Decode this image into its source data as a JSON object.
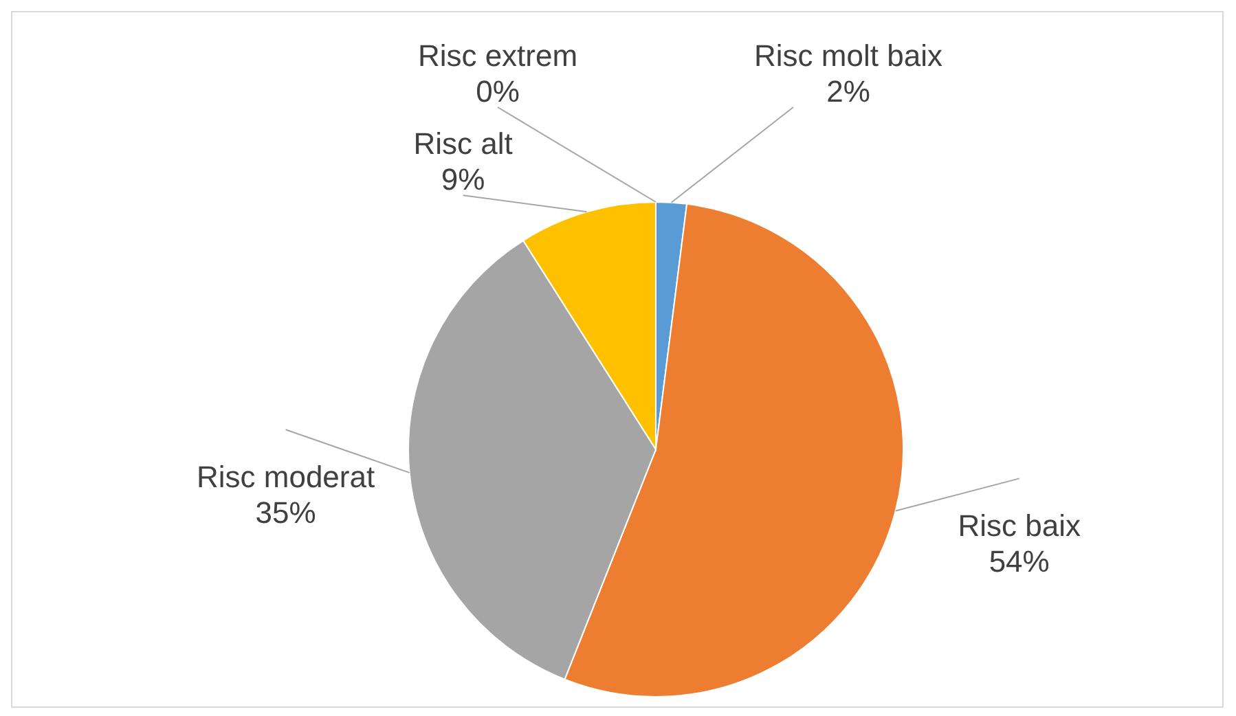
{
  "chart_data": {
    "type": "pie",
    "categories": [
      "Risc molt baix",
      "Risc baix",
      "Risc moderat",
      "Risc alt",
      "Risc extrem"
    ],
    "values": [
      2,
      54,
      35,
      9,
      0
    ],
    "colors": [
      "#5b9bd5",
      "#ed7d31",
      "#a5a5a5",
      "#ffc000",
      "#264478"
    ],
    "value_labels": [
      "2%",
      "54%",
      "35%",
      "9%",
      "0%"
    ],
    "legend": false
  }
}
